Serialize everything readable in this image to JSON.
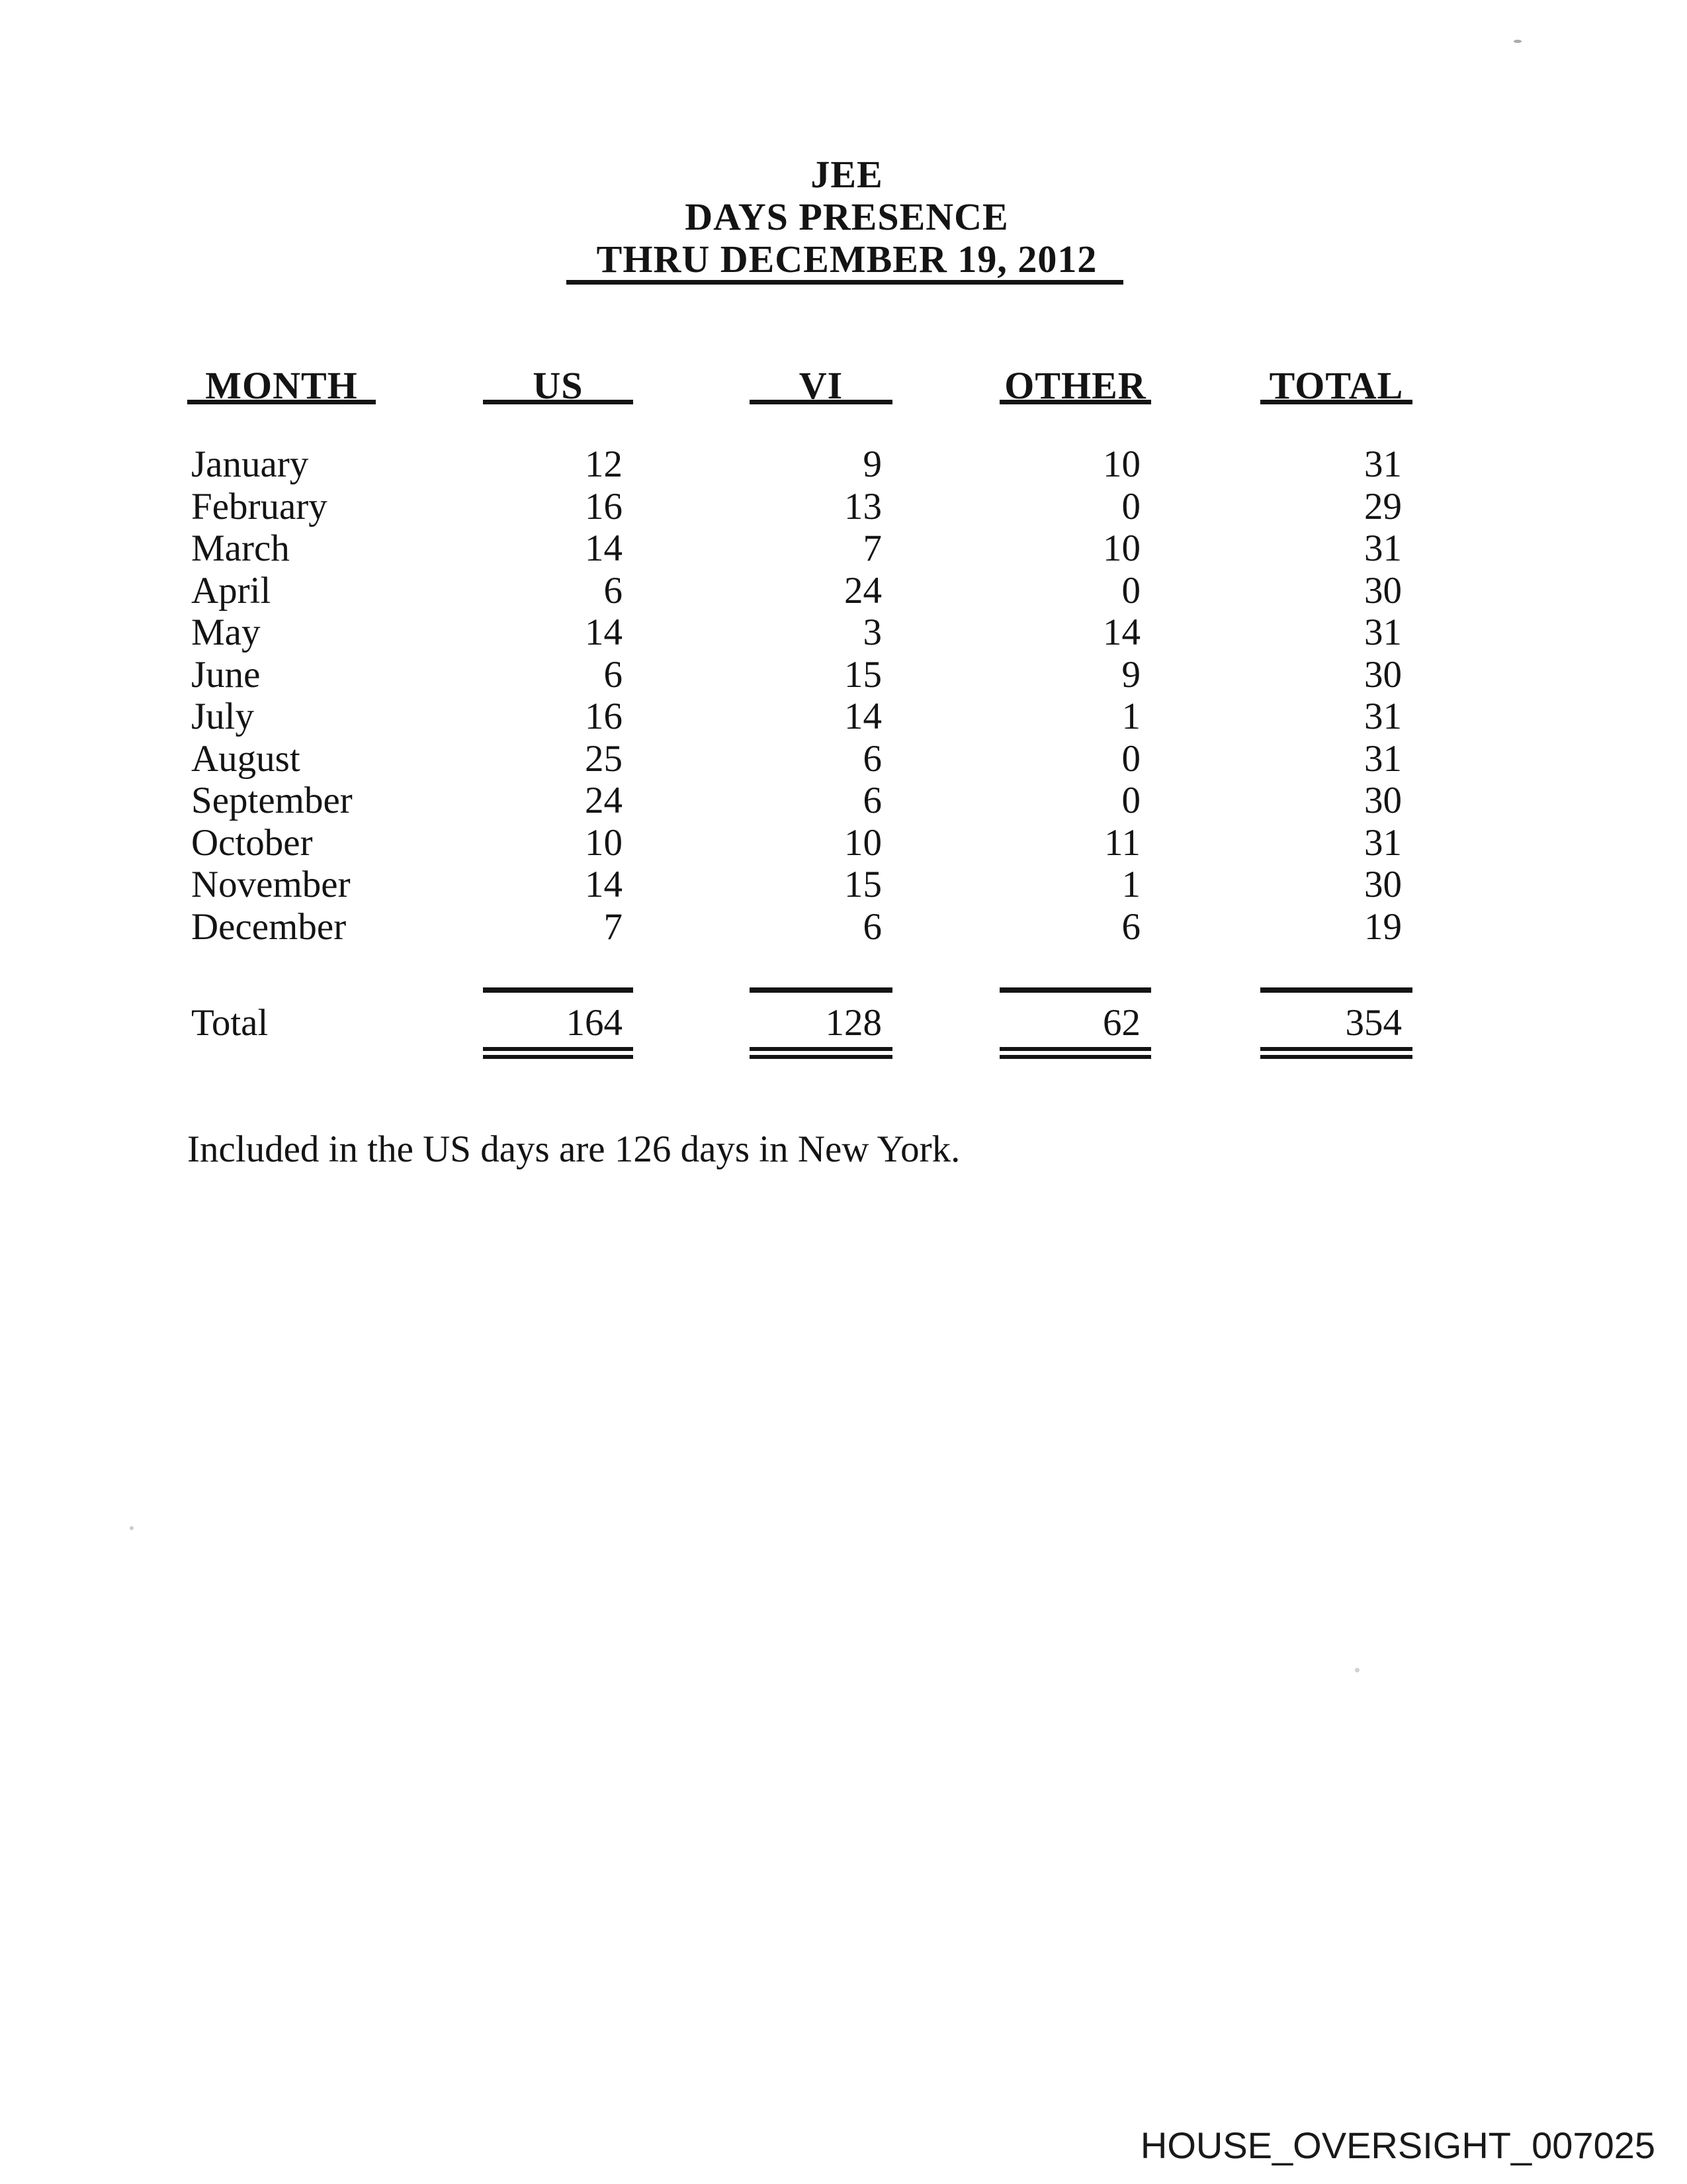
{
  "page": {
    "title_lines": [
      "JEE",
      "DAYS PRESENCE",
      "THRU DECEMBER 19, 2012"
    ],
    "note": "Included in the US days are 126 days in New York.",
    "footer": "HOUSE_OVERSIGHT_007025"
  },
  "colors": {
    "ink": "#141414",
    "paper": "#ffffff"
  },
  "table": {
    "columns": [
      "MONTH",
      "US",
      "VI",
      "OTHER",
      "TOTAL"
    ],
    "rows": [
      {
        "month": "January",
        "us": 12,
        "vi": 9,
        "other": 10,
        "total": 31
      },
      {
        "month": "February",
        "us": 16,
        "vi": 13,
        "other": 0,
        "total": 29
      },
      {
        "month": "March",
        "us": 14,
        "vi": 7,
        "other": 10,
        "total": 31
      },
      {
        "month": "April",
        "us": 6,
        "vi": 24,
        "other": 0,
        "total": 30
      },
      {
        "month": "May",
        "us": 14,
        "vi": 3,
        "other": 14,
        "total": 31
      },
      {
        "month": "June",
        "us": 6,
        "vi": 15,
        "other": 9,
        "total": 30
      },
      {
        "month": "July",
        "us": 16,
        "vi": 14,
        "other": 1,
        "total": 31
      },
      {
        "month": "August",
        "us": 25,
        "vi": 6,
        "other": 0,
        "total": 31
      },
      {
        "month": "September",
        "us": 24,
        "vi": 6,
        "other": 0,
        "total": 30
      },
      {
        "month": "October",
        "us": 10,
        "vi": 10,
        "other": 11,
        "total": 31
      },
      {
        "month": "November",
        "us": 14,
        "vi": 15,
        "other": 1,
        "total": 30
      },
      {
        "month": "December",
        "us": 7,
        "vi": 6,
        "other": 6,
        "total": 19
      }
    ],
    "total_row": {
      "label": "Total",
      "us": 164,
      "vi": 128,
      "other": 62,
      "total": 354
    }
  }
}
